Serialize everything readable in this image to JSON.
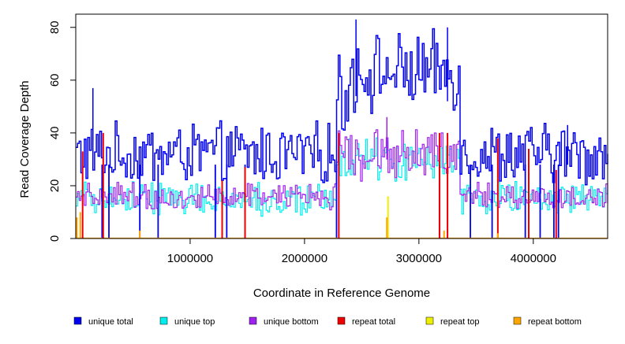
{
  "chart_data": {
    "type": "line",
    "title": "",
    "xlabel": "Coordinate in Reference Genome",
    "ylabel": "Read Coverage Depth",
    "xlim": [
      0,
      4650000
    ],
    "ylim": [
      0,
      85
    ],
    "xticks": [
      1000000,
      2000000,
      3000000,
      4000000
    ],
    "xtick_labels": [
      "1000000",
      "2000000",
      "3000000",
      "4000000"
    ],
    "yticks": [
      0,
      20,
      40,
      60,
      80
    ],
    "ytick_labels": [
      "0",
      "20",
      "40",
      "60",
      "80"
    ],
    "legend_position": "bottom",
    "series": [
      {
        "name": "unique total",
        "color": "#0000ee",
        "segments": [
          {
            "x0": 0,
            "x1": 2270000,
            "base": 32,
            "amp": 10,
            "noise": 6
          },
          {
            "x0": 2270000,
            "x1": 2400000,
            "base": 55,
            "amp": 14,
            "noise": 8
          },
          {
            "x0": 2400000,
            "x1": 3350000,
            "base": 63,
            "amp": 12,
            "noise": 9
          },
          {
            "x0": 3350000,
            "x1": 4650000,
            "base": 32,
            "amp": 10,
            "noise": 6
          }
        ],
        "peaks": [
          [
            150000,
            57
          ],
          [
            2450000,
            83
          ],
          [
            3250000,
            80
          ],
          [
            4300000,
            43
          ]
        ],
        "dropouts": [
          230000,
          290000,
          560000,
          720000,
          1220000,
          1320000,
          1480000,
          2280000,
          3180000,
          3450000,
          3640000,
          3930000,
          3960000,
          4060000,
          4180000,
          4220000
        ]
      },
      {
        "name": "unique top",
        "color": "#00eeee",
        "segments": [
          {
            "x0": 0,
            "x1": 2270000,
            "base": 15,
            "amp": 5,
            "noise": 4
          },
          {
            "x0": 2270000,
            "x1": 3350000,
            "base": 30,
            "amp": 7,
            "noise": 5
          },
          {
            "x0": 3350000,
            "x1": 4650000,
            "base": 15,
            "amp": 5,
            "noise": 4
          }
        ],
        "peaks": [],
        "dropouts": []
      },
      {
        "name": "unique bottom",
        "color": "#a020f0",
        "segments": [
          {
            "x0": 0,
            "x1": 2270000,
            "base": 16,
            "amp": 4,
            "noise": 3
          },
          {
            "x0": 2270000,
            "x1": 3350000,
            "base": 32,
            "amp": 8,
            "noise": 5
          },
          {
            "x0": 3350000,
            "x1": 4650000,
            "base": 16,
            "amp": 4,
            "noise": 3
          }
        ],
        "peaks": [
          [
            2720000,
            46
          ]
        ],
        "dropouts": []
      },
      {
        "name": "repeat total",
        "color": "#ee0000",
        "spikes": [
          [
            60000,
            33
          ],
          [
            240000,
            40
          ],
          [
            1480000,
            27
          ],
          [
            1280000,
            22
          ],
          [
            2300000,
            40
          ],
          [
            3180000,
            40
          ],
          [
            3250000,
            40
          ],
          [
            3690000,
            38
          ],
          [
            3960000,
            34
          ],
          [
            4200000,
            26
          ]
        ]
      },
      {
        "name": "repeat top",
        "color": "#eeee00",
        "spikes": [
          [
            2730000,
            16
          ]
        ]
      },
      {
        "name": "repeat bottom",
        "color": "#ffa500",
        "spikes": [
          [
            10000,
            8
          ],
          [
            40000,
            10
          ],
          [
            560000,
            3
          ],
          [
            2720000,
            8
          ],
          [
            3220000,
            3
          ],
          [
            3690000,
            2
          ]
        ]
      }
    ]
  }
}
